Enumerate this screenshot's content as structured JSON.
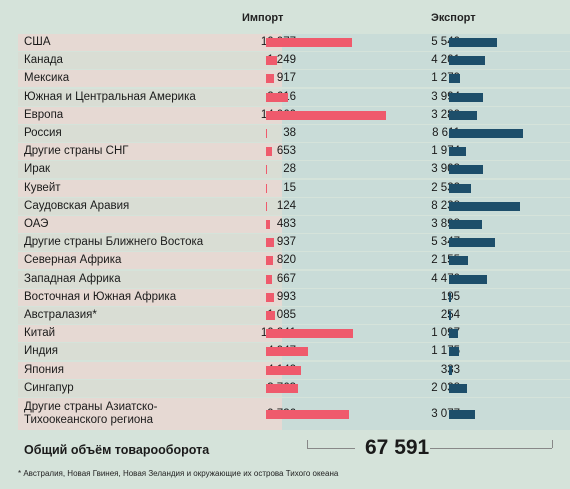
{
  "headers": {
    "import": "Импорт",
    "export": "Экспорт"
  },
  "chart_data": {
    "type": "bar",
    "categories": [
      "США",
      "Канада",
      "Мексика",
      "Южная и Центральная Америка",
      "Европа",
      "Россия",
      "Другие страны СНГ",
      "Ирак",
      "Кувейт",
      "Саудовская Аравия",
      "ОАЭ",
      "Другие страны Ближнего Востока",
      "Северная Африка",
      "Западная Африка",
      "Восточная и Южная Африка",
      "Австралазия*",
      "Китай",
      "Индия",
      "Япония",
      "Сингапур",
      "Другие страны Азиатско-Тихоокеанского региона"
    ],
    "series": [
      {
        "name": "Импорт",
        "values": [
          10077,
          1249,
          917,
          2616,
          14060,
          38,
          653,
          28,
          15,
          124,
          483,
          937,
          820,
          667,
          993,
          1085,
          10241,
          4947,
          4142,
          3763,
          9736
        ],
        "labels": [
          "10 077",
          "1 249",
          "917",
          "2 616",
          "14 060",
          "38",
          "653",
          "28",
          "15",
          "124",
          "483",
          "937",
          "820",
          "667",
          "993",
          "1 085",
          "10 241",
          "4 947",
          "4 142",
          "3 763",
          "9 736"
        ]
      },
      {
        "name": "Экспорт",
        "values": [
          5540,
          4201,
          1279,
          3994,
          3280,
          8611,
          1974,
          3903,
          2532,
          8238,
          3898,
          5347,
          2155,
          4470,
          195,
          254,
          1097,
          1175,
          333,
          2038,
          3077
        ],
        "labels": [
          "5 540",
          "4 201",
          "1 279",
          "3 994",
          "3 280",
          "8 611",
          "1 974",
          "3 903",
          "2 532",
          "8 238",
          "3 898",
          "5 347",
          "2 155",
          "4 470",
          "195",
          "254",
          "1 097",
          "1 175",
          "333",
          "2 038",
          "3 077"
        ]
      }
    ]
  },
  "total": {
    "label": "Общий объём товарооборота",
    "value": "67 591"
  },
  "footnote": "* Австралия, Новая Гвинея, Новая Зеландия и окружающие их острова Тихого океана",
  "colors": {
    "import": "#ef5a6c",
    "export": "#1d4e6a",
    "row_odd": "#e6d9d3",
    "row_even": "#d9ddd4"
  }
}
